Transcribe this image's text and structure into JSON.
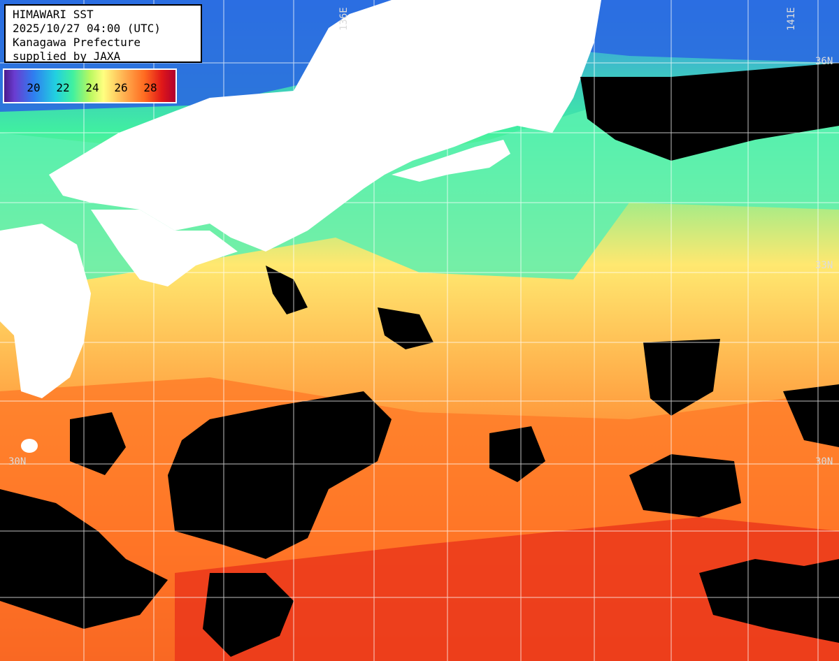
{
  "title": {
    "line1": "HIMAWARI SST",
    "line2": "2025/10/27 04:00 (UTC)",
    "line3": "Kanagawa Prefecture",
    "line4": "supplied by JAXA"
  },
  "legend": {
    "ticks": [
      "20",
      "22",
      "24",
      "26",
      "28"
    ]
  },
  "axes": {
    "lat_labels": [
      "36N",
      "33N",
      "30N"
    ],
    "lon_labels": [
      "136E",
      "141E"
    ]
  },
  "colors": {
    "land": "#ffffff",
    "cloud_no_data": "#000000",
    "grid": "#ffffff",
    "cold": "#3a8cf0",
    "cool": "#40f0a0",
    "mid": "#ffff80",
    "warm": "#ff8030",
    "hot": "#e01818"
  }
}
